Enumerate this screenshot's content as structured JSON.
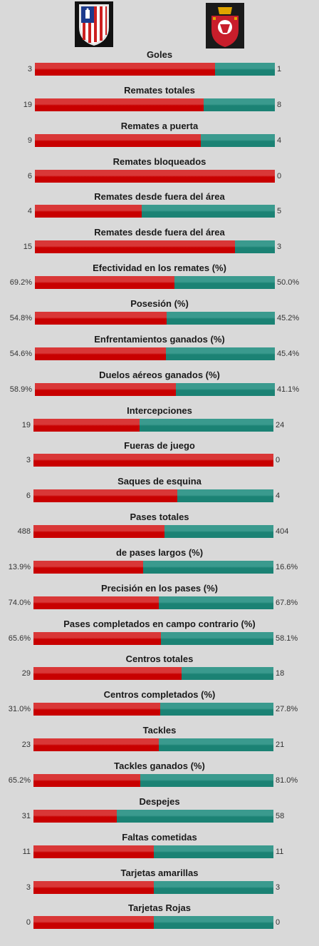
{
  "colors": {
    "home": "#c80000",
    "away": "#1b8274",
    "background": "#d9d9d9"
  },
  "teams": {
    "home": {
      "crest_icon": "atletico-madrid-crest-icon"
    },
    "away": {
      "crest_icon": "osasuna-crest-icon"
    }
  },
  "stats": [
    {
      "label": "Goles",
      "home": "3",
      "away": "1",
      "home_share": 0.75
    },
    {
      "label": "Remates totales",
      "home": "19",
      "away": "8",
      "home_share": 0.7037
    },
    {
      "label": "Remates a puerta",
      "home": "9",
      "away": "4",
      "home_share": 0.6923
    },
    {
      "label": "Remates bloqueados",
      "home": "6",
      "away": "0",
      "home_share": 1.0
    },
    {
      "label": "Remates desde fuera del área",
      "home": "4",
      "away": "5",
      "home_share": 0.4444
    },
    {
      "label": "Remates desde fuera del área",
      "home": "15",
      "away": "3",
      "home_share": 0.8333
    },
    {
      "label": "Efectividad en los remates (%)",
      "home": "69.2%",
      "away": "50.0%",
      "home_share": 0.5805
    },
    {
      "label": "Posesión (%)",
      "home": "54.8%",
      "away": "45.2%",
      "home_share": 0.548
    },
    {
      "label": "Enfrentamientos ganados (%)",
      "home": "54.6%",
      "away": "45.4%",
      "home_share": 0.546
    },
    {
      "label": "Duelos aéreos ganados (%)",
      "home": "58.9%",
      "away": "41.1%",
      "home_share": 0.589
    },
    {
      "label": "Intercepciones",
      "home": "19",
      "away": "24",
      "home_share": 0.4419
    },
    {
      "label": "Fueras de juego",
      "home": "3",
      "away": "0",
      "home_share": 1.0
    },
    {
      "label": "Saques de esquina",
      "home": "6",
      "away": "4",
      "home_share": 0.6
    },
    {
      "label": "Pases totales",
      "home": "488",
      "away": "404",
      "home_share": 0.5471
    },
    {
      "label": "de pases largos (%)",
      "home": "13.9%",
      "away": "16.6%",
      "home_share": 0.4557
    },
    {
      "label": "Precisión en los pases (%)",
      "home": "74.0%",
      "away": "67.8%",
      "home_share": 0.5219
    },
    {
      "label": "Pases completados en campo contrario (%)",
      "home": "65.6%",
      "away": "58.1%",
      "home_share": 0.5303
    },
    {
      "label": "Centros totales",
      "home": "29",
      "away": "18",
      "home_share": 0.617
    },
    {
      "label": "Centros completados (%)",
      "home": "31.0%",
      "away": "27.8%",
      "home_share": 0.5272
    },
    {
      "label": "Tackles",
      "home": "23",
      "away": "21",
      "home_share": 0.5227
    },
    {
      "label": "Tackles ganados (%)",
      "home": "65.2%",
      "away": "81.0%",
      "home_share": 0.446
    },
    {
      "label": "Despejes",
      "home": "31",
      "away": "58",
      "home_share": 0.3483
    },
    {
      "label": "Faltas cometidas",
      "home": "11",
      "away": "11",
      "home_share": 0.5
    },
    {
      "label": "Tarjetas amarillas",
      "home": "3",
      "away": "3",
      "home_share": 0.5
    },
    {
      "label": "Tarjetas Rojas",
      "home": "0",
      "away": "0",
      "home_share": 0.5
    }
  ]
}
